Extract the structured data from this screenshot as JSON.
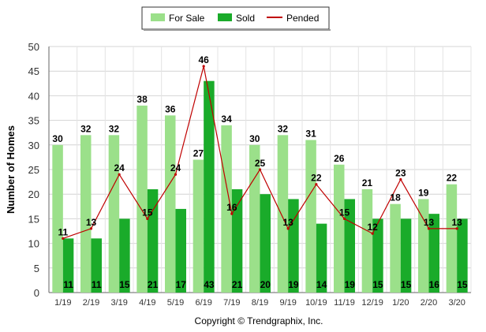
{
  "chart_data": {
    "type": "bar",
    "title": "",
    "xlabel": "",
    "ylabel": "Number of Homes",
    "ylim": [
      0,
      50
    ],
    "yticks": [
      0,
      5,
      10,
      15,
      20,
      25,
      30,
      35,
      40,
      45,
      50
    ],
    "grid": true,
    "legend_position": "top-center",
    "categories": [
      "1/19",
      "2/19",
      "3/19",
      "4/19",
      "5/19",
      "6/19",
      "7/19",
      "8/19",
      "9/19",
      "10/19",
      "11/19",
      "12/19",
      "1/20",
      "2/20",
      "3/20"
    ],
    "series": [
      {
        "name": "For Sale",
        "type": "bar",
        "color": "#9be08a",
        "values": [
          30,
          32,
          32,
          38,
          36,
          27,
          34,
          30,
          32,
          31,
          26,
          21,
          18,
          19,
          22
        ]
      },
      {
        "name": "Sold",
        "type": "bar",
        "color": "#1aab2a",
        "values": [
          11,
          11,
          15,
          21,
          17,
          43,
          21,
          20,
          19,
          14,
          19,
          15,
          15,
          16,
          15
        ]
      },
      {
        "name": "Pended",
        "type": "line",
        "color": "#c00000",
        "values": [
          11,
          13,
          24,
          15,
          24,
          46,
          16,
          25,
          13,
          22,
          15,
          12,
          23,
          13,
          13
        ]
      }
    ],
    "credit": "Copyright © Trendgraphix, Inc."
  }
}
